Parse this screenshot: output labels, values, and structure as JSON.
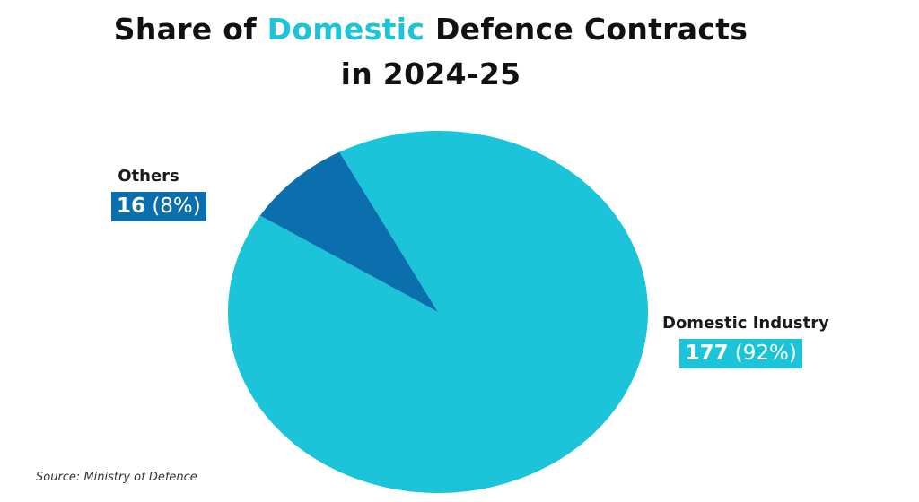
{
  "title": {
    "part1": "Share of ",
    "accent": "Domestic",
    "part2": " Defence Contracts",
    "line2": "in 2024-25"
  },
  "source": "Source: Ministry of Defence",
  "colors": {
    "domestic": "#1cc4da",
    "others": "#0b6fad",
    "accent": "#1cc4da"
  },
  "chart_data": {
    "type": "pie",
    "slices": [
      {
        "label": "Domestic Industry",
        "value": 177,
        "percent_label": "(92%)",
        "color": "#1cc4da"
      },
      {
        "label": "Others",
        "value": 16,
        "percent_label": "(8%)",
        "color": "#0b6fad"
      }
    ]
  }
}
